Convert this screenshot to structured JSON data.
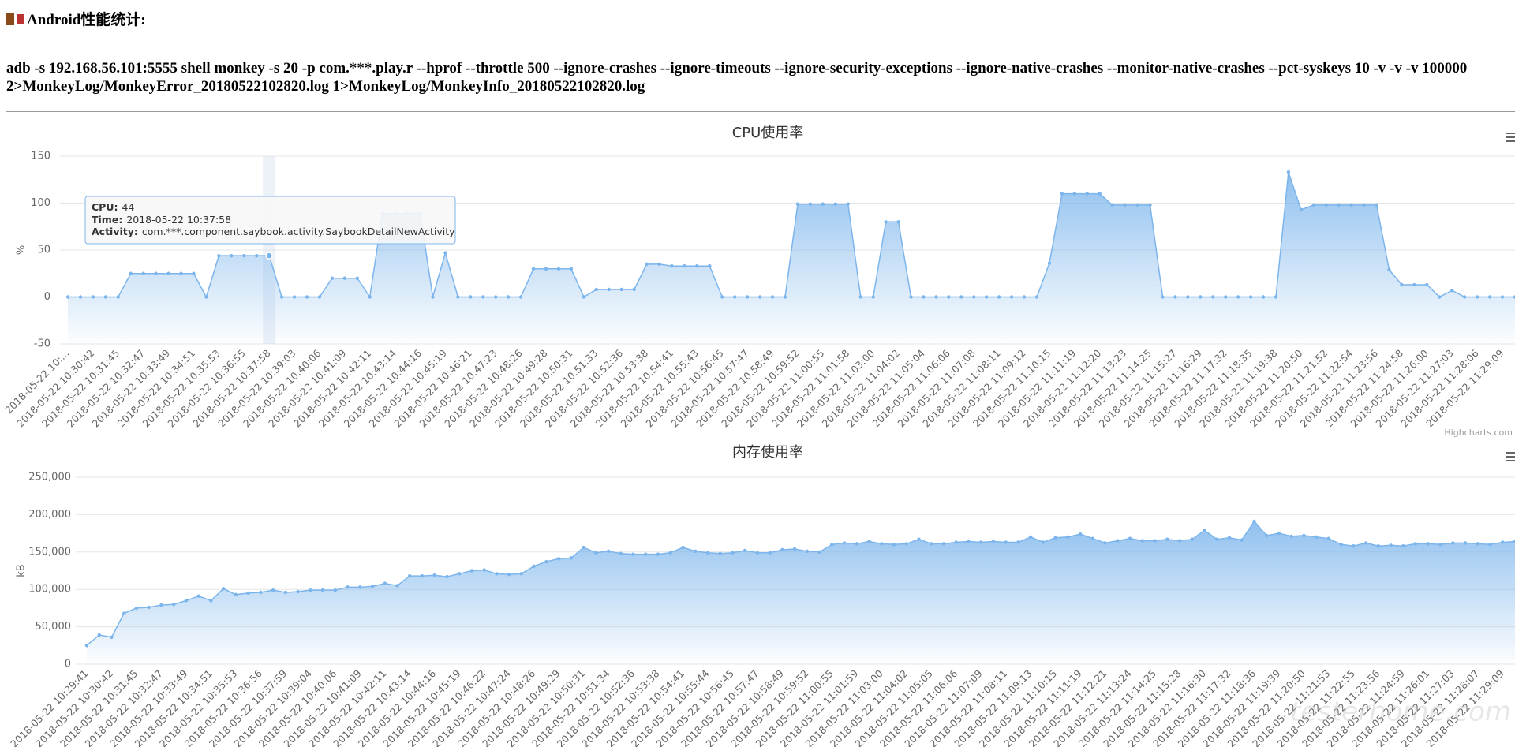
{
  "header": {
    "title": "Android性能统计:",
    "command": "adb -s 192.168.56.101:5555 shell monkey -s 20 -p com.***.play.r --hprof --throttle 500 --ignore-crashes --ignore-timeouts --ignore-security-exceptions --ignore-native-crashes --monitor-native-crashes --pct-syskeys 10 -v -v -v 100000 2>MonkeyLog/MonkeyError_20180522102820.log 1>MonkeyLog/MonkeyInfo_20180522102820.log"
  },
  "watermark": "testerhome.com",
  "chart_data": [
    {
      "type": "area",
      "title": "CPU使用率",
      "y_axis_title": "%",
      "credits": "Highcharts.com",
      "color": "#7cb5ec",
      "grid": true,
      "ylim": [
        -50,
        150
      ],
      "yticks": [
        -50,
        0,
        50,
        100,
        150
      ],
      "tooltip": {
        "labels": [
          "CPU:",
          "Time:",
          "Activity:"
        ],
        "activity": "com.***.component.saybook.activity.SaybookDetailNewActivity"
      },
      "categories": [
        "2018-05-22 10:...",
        null,
        "2018-05-22 10:30:42",
        null,
        "2018-05-22 10:31:45",
        null,
        "2018-05-22 10:32:47",
        null,
        "2018-05-22 10:33:49",
        null,
        "2018-05-22 10:34:51",
        null,
        "2018-05-22 10:35:53",
        null,
        "2018-05-22 10:36:55",
        null,
        "2018-05-22 10:37:58",
        null,
        "2018-05-22 10:39:03",
        null,
        "2018-05-22 10:40:06",
        null,
        "2018-05-22 10:41:09",
        null,
        "2018-05-22 10:42:11",
        null,
        "2018-05-22 10:43:14",
        null,
        "2018-05-22 10:44:16",
        null,
        "2018-05-22 10:45:19",
        null,
        "2018-05-22 10:46:21",
        null,
        "2018-05-22 10:47:23",
        null,
        "2018-05-22 10:48:26",
        null,
        "2018-05-22 10:49:28",
        null,
        "2018-05-22 10:50:31",
        null,
        "2018-05-22 10:51:33",
        null,
        "2018-05-22 10:52:36",
        null,
        "2018-05-22 10:53:38",
        null,
        "2018-05-22 10:54:41",
        null,
        "2018-05-22 10:55:43",
        null,
        "2018-05-22 10:56:45",
        null,
        "2018-05-22 10:57:47",
        null,
        "2018-05-22 10:58:49",
        null,
        "2018-05-22 10:59:52",
        null,
        "2018-05-22 11:00:55",
        null,
        "2018-05-22 11:01:58",
        null,
        "2018-05-22 11:03:00",
        null,
        "2018-05-22 11:04:02",
        null,
        "2018-05-22 11:05:04",
        null,
        "2018-05-22 11:06:06",
        null,
        "2018-05-22 11:07:08",
        null,
        "2018-05-22 11:08:11",
        null,
        "2018-05-22 11:09:12",
        null,
        "2018-05-22 11:10:15",
        null,
        "2018-05-22 11:11:19",
        null,
        "2018-05-22 11:12:20",
        null,
        "2018-05-22 11:13:23",
        null,
        "2018-05-22 11:14:25",
        null,
        "2018-05-22 11:15:27",
        null,
        "2018-05-22 11:16:29",
        null,
        "2018-05-22 11:17:32",
        null,
        "2018-05-22 11:18:35",
        null,
        "2018-05-22 11:19:38",
        null,
        "2018-05-22 11:20:50",
        null,
        "2018-05-22 11:21:52",
        null,
        "2018-05-22 11:22:54",
        null,
        "2018-05-22 11:23:56",
        null,
        "2018-05-22 11:24:58",
        null,
        "2018-05-22 11:26:00",
        null,
        "2018-05-22 11:27:03",
        null,
        "2018-05-22 11:28:06",
        null,
        "2018-05-22 11:29:09",
        null
      ],
      "values": [
        0,
        0,
        0,
        0,
        0,
        25,
        25,
        25,
        25,
        25,
        25,
        0,
        44,
        44,
        44,
        44,
        44,
        0,
        0,
        0,
        0,
        20,
        20,
        20,
        0,
        89,
        89,
        89,
        89,
        0,
        47,
        0,
        0,
        0,
        0,
        0,
        0,
        30,
        30,
        30,
        30,
        0,
        8,
        8,
        8,
        8,
        35,
        35,
        33,
        33,
        33,
        33,
        0,
        0,
        0,
        0,
        0,
        0,
        99,
        99,
        99,
        99,
        99,
        0,
        0,
        80,
        80,
        0,
        0,
        0,
        0,
        0,
        0,
        0,
        0,
        0,
        0,
        0,
        36,
        110,
        110,
        110,
        110,
        98,
        98,
        98,
        98,
        0,
        0,
        0,
        0,
        0,
        0,
        0,
        0,
        0,
        0,
        133,
        93,
        98,
        98,
        98,
        98,
        98,
        98,
        29,
        13,
        13,
        13,
        0,
        7,
        0,
        0,
        0,
        0,
        0
      ]
    },
    {
      "type": "area",
      "title": "内存使用率",
      "y_axis_title": "kB",
      "color": "#7cb5ec",
      "grid": true,
      "ylim": [
        0,
        250000
      ],
      "yticks": [
        0,
        {
          "value": 50000,
          "label": "50,000"
        },
        {
          "value": 100000,
          "label": "100,000"
        },
        {
          "value": 150000,
          "label": "150,000"
        },
        {
          "value": 200000,
          "label": "200,000"
        },
        {
          "value": 250000,
          "label": "250,000"
        }
      ],
      "categories": [
        "2018-05-22 10:29:41",
        null,
        "2018-05-22 10:30:42",
        null,
        "2018-05-22 10:31:45",
        null,
        "2018-05-22 10:32:47",
        null,
        "2018-05-22 10:33:49",
        null,
        "2018-05-22 10:34:51",
        null,
        "2018-05-22 10:35:53",
        null,
        "2018-05-22 10:36:56",
        null,
        "2018-05-22 10:37:59",
        null,
        "2018-05-22 10:39:04",
        null,
        "2018-05-22 10:40:06",
        null,
        "2018-05-22 10:41:09",
        null,
        "2018-05-22 10:42:11",
        null,
        "2018-05-22 10:43:14",
        null,
        "2018-05-22 10:44:16",
        null,
        "2018-05-22 10:45:19",
        null,
        "2018-05-22 10:46:22",
        null,
        "2018-05-22 10:47:24",
        null,
        "2018-05-22 10:48:26",
        null,
        "2018-05-22 10:49:29",
        null,
        "2018-05-22 10:50:31",
        null,
        "2018-05-22 10:51:34",
        null,
        "2018-05-22 10:52:36",
        null,
        "2018-05-22 10:53:38",
        null,
        "2018-05-22 10:54:41",
        null,
        "2018-05-22 10:55:44",
        null,
        "2018-05-22 10:56:45",
        null,
        "2018-05-22 10:57:47",
        null,
        "2018-05-22 10:58:49",
        null,
        "2018-05-22 10:59:52",
        null,
        "2018-05-22 11:00:55",
        null,
        "2018-05-22 11:01:59",
        null,
        "2018-05-22 11:03:00",
        null,
        "2018-05-22 11:04:02",
        null,
        "2018-05-22 11:05:05",
        null,
        "2018-05-22 11:06:06",
        null,
        "2018-05-22 11:07:09",
        null,
        "2018-05-22 11:08:11",
        null,
        "2018-05-22 11:09:13",
        null,
        "2018-05-22 11:10:15",
        null,
        "2018-05-22 11:11:19",
        null,
        "2018-05-22 11:12:21",
        null,
        "2018-05-22 11:13:24",
        null,
        "2018-05-22 11:14:25",
        null,
        "2018-05-22 11:15:28",
        null,
        "2018-05-22 11:16:30",
        null,
        "2018-05-22 11:17:32",
        null,
        "2018-05-22 11:18:36",
        null,
        "2018-05-22 11:19:39",
        null,
        "2018-05-22 11:20:50",
        null,
        "2018-05-22 11:21:53",
        null,
        "2018-05-22 11:22:55",
        null,
        "2018-05-22 11:23:56",
        null,
        "2018-05-22 11:24:59",
        null,
        "2018-05-22 11:26:01",
        null,
        "2018-05-22 11:27:03",
        null,
        "2018-05-22 11:28:07",
        null,
        "2018-05-22 11:29:09",
        null
      ],
      "values": [
        25000,
        39000,
        36000,
        68000,
        75000,
        76000,
        79000,
        80000,
        85000,
        91000,
        85000,
        101000,
        93000,
        95000,
        96000,
        99000,
        96000,
        97000,
        99000,
        99000,
        99000,
        103000,
        103000,
        104000,
        108000,
        105000,
        118000,
        118000,
        119000,
        117000,
        121000,
        125000,
        126000,
        121000,
        120000,
        121000,
        131000,
        137000,
        141000,
        142000,
        156000,
        149000,
        151000,
        148000,
        147000,
        147000,
        147000,
        149000,
        156000,
        151000,
        149000,
        148000,
        149000,
        152000,
        149000,
        149000,
        153000,
        154000,
        151000,
        150000,
        160000,
        162000,
        161000,
        164000,
        161000,
        160000,
        161000,
        167000,
        161000,
        161000,
        163000,
        164000,
        163000,
        164000,
        163000,
        163000,
        170000,
        163000,
        169000,
        170000,
        174000,
        168000,
        162000,
        165000,
        168000,
        165000,
        165000,
        167000,
        165000,
        167000,
        179000,
        167000,
        169000,
        166000,
        191000,
        172000,
        175000,
        171000,
        172000,
        170000,
        168000,
        160000,
        158000,
        162000,
        158000,
        159000,
        158000,
        161000,
        161000,
        160000,
        162000,
        162000,
        161000,
        160000,
        163000,
        164000
      ]
    }
  ]
}
